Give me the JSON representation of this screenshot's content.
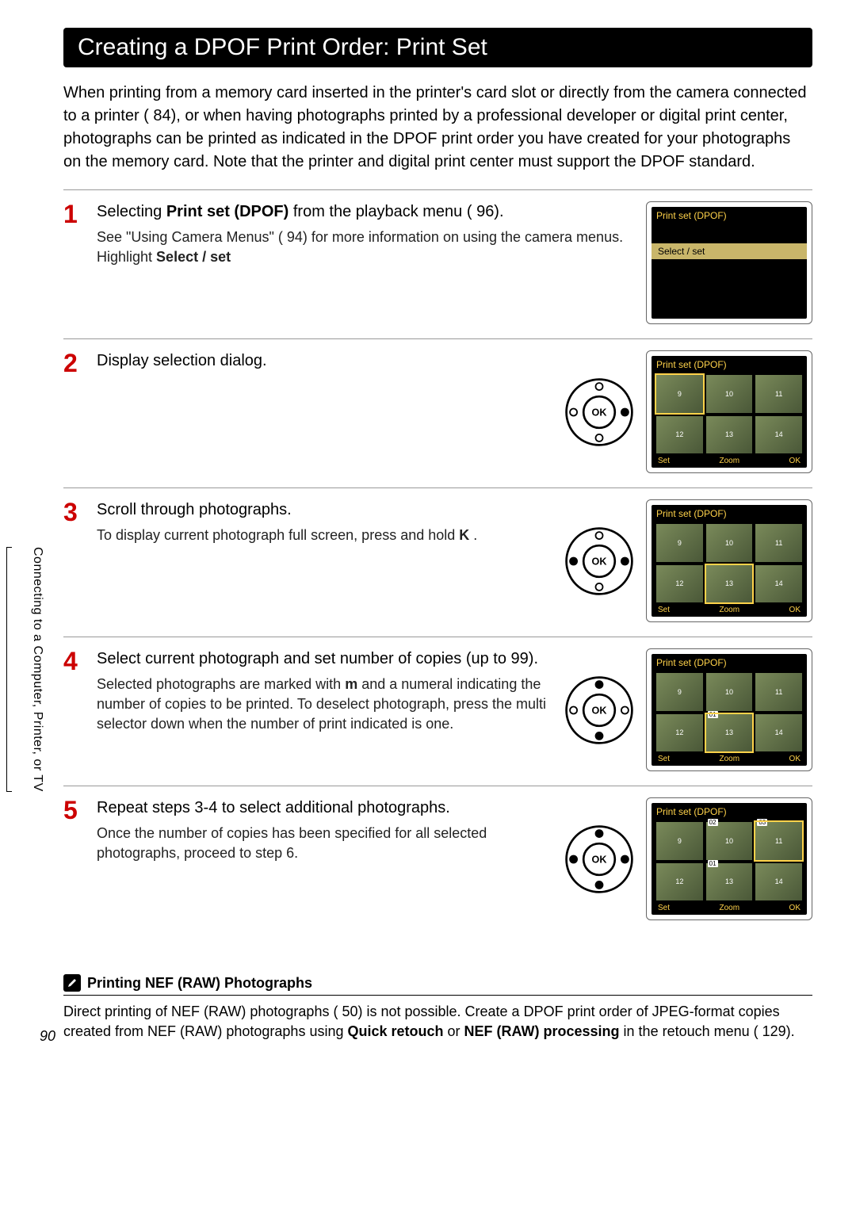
{
  "page": {
    "title": "Creating a DPOF Print Order: Print Set",
    "intro": "When printing from a memory card inserted in the printer's card slot or directly from the camera connected to a printer (  84), or when having photographs printed by a professional developer or digital print center, photographs can be printed as indicated in the DPOF print order you have created for your photographs on the memory card. Note that the printer and digital print center must support the DPOF standard.",
    "sideTab": "Connecting to a Computer, Printer, or TV",
    "pageNumber": "90"
  },
  "steps": [
    {
      "num": "1",
      "titlePre": "Selecting ",
      "titleBold": "Print set (DPOF)",
      "titlePost": " from the playback menu (  96).",
      "descPre": "See \"Using Camera Menus\" (  94) for more information on using the camera menus.",
      "descLine2Pre": "Highlight ",
      "descLine2Bold": "Select / set",
      "lcd": {
        "type": "select",
        "title": "Print set (DPOF)",
        "item": "Select / set"
      }
    },
    {
      "num": "2",
      "titleBold": "Display selection dialog.",
      "dpad": {
        "up": false,
        "down": false,
        "left": false,
        "right": true
      },
      "lcd": {
        "type": "grid",
        "title": "Print set (DPOF)",
        "thumbs": [
          "9",
          "10",
          "11",
          "12",
          "13",
          "14"
        ],
        "sel": 0
      }
    },
    {
      "num": "3",
      "titleBold": "Scroll through photographs.",
      "descPre": "To display current photograph full screen, press and hold ",
      "descBold": "K",
      "descPost": " .",
      "dpad": {
        "up": false,
        "down": false,
        "left": true,
        "right": true
      },
      "lcd": {
        "type": "grid",
        "title": "Print set (DPOF)",
        "thumbs": [
          "9",
          "10",
          "11",
          "12",
          "13",
          "14"
        ],
        "sel": 4
      }
    },
    {
      "num": "4",
      "titleBold": "Select current photograph and set number of copies (up to 99).",
      "descPre": "Selected photographs are marked with ",
      "descBold": "m",
      "descPost": " and a numeral indicating the number of copies to be printed. To deselect photograph, press the multi selector down when the number of print indicated is one.",
      "dpad": {
        "up": true,
        "down": true,
        "left": false,
        "right": false
      },
      "lcd": {
        "type": "grid",
        "title": "Print set (DPOF)",
        "thumbs": [
          "9",
          "10",
          "11",
          "12",
          "13",
          "14"
        ],
        "sel": 4,
        "badges": {
          "4": "01"
        }
      }
    },
    {
      "num": "5",
      "titleBold": "Repeat steps 3-4 to select additional photographs.",
      "desc": "Once the number of copies has been specified for all selected photographs, proceed to step 6.",
      "dpad": {
        "up": true,
        "down": true,
        "left": true,
        "right": true
      },
      "lcd": {
        "type": "grid",
        "title": "Print set (DPOF)",
        "thumbs": [
          "9",
          "10",
          "11",
          "12",
          "13",
          "14"
        ],
        "sel": 2,
        "badges": {
          "1": "02",
          "2": "03",
          "4": "01"
        }
      }
    }
  ],
  "lcdFooter": {
    "left": "Set",
    "mid": "Zoom",
    "right": "OK"
  },
  "note": {
    "title": "Printing NEF (RAW) Photographs",
    "pre": "Direct printing of NEF (RAW) photographs (  50) is not possible. Create a DPOF print order of JPEG-format copies created from NEF (RAW) photographs using ",
    "b1": "Quick retouch",
    "mid": " or ",
    "b2": "NEF (RAW) processing",
    "post": " in the retouch menu (  129)."
  },
  "colors": {
    "accentRed": "#c00",
    "lcdTitle": "#ffd24a"
  }
}
